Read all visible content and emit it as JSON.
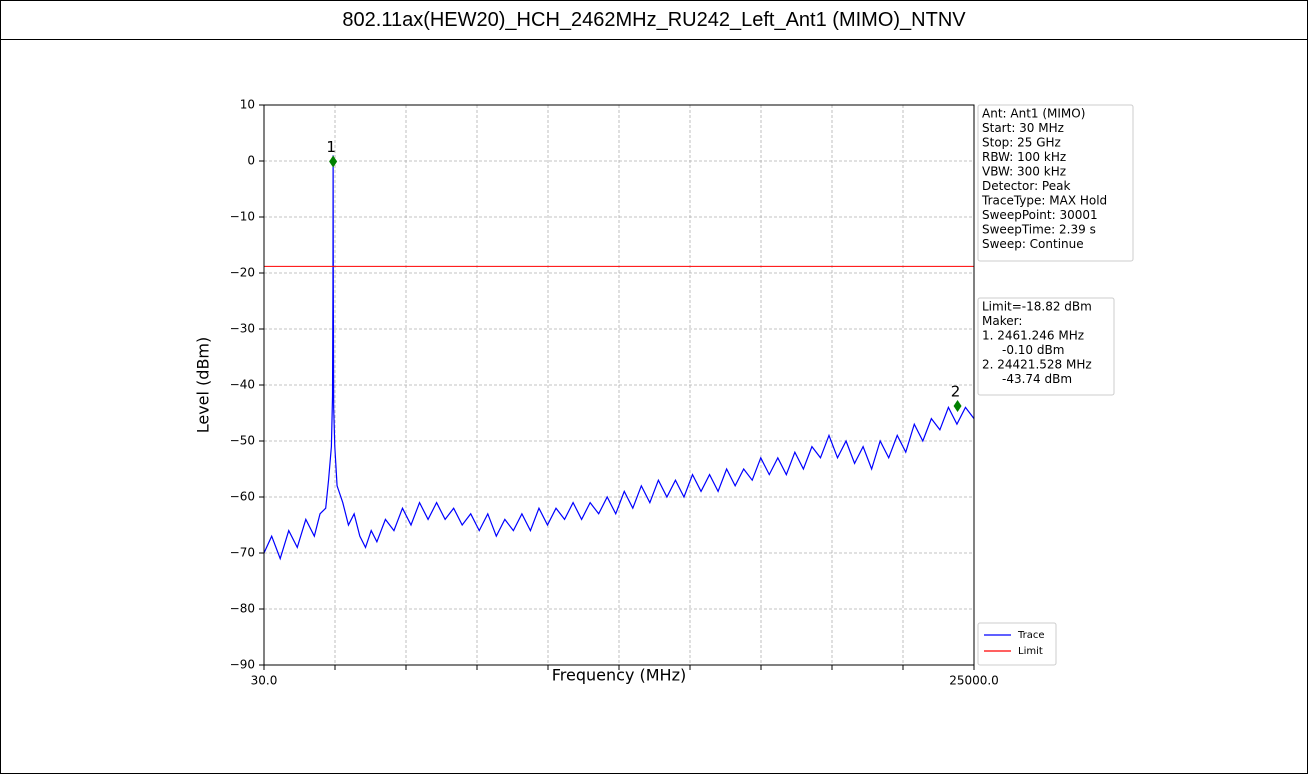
{
  "chart_data": {
    "type": "line",
    "title": "802.11ax(HEW20)_HCH_2462MHz_RU242_Left_Ant1 (MIMO)_NTNV",
    "x_label": "Frequency (MHz)",
    "y_label": "Level (dBm)",
    "xlim": [
      30,
      25000
    ],
    "ylim": [
      -90,
      10
    ],
    "xticks": [
      {
        "value": 30,
        "label": "30.0"
      },
      {
        "value": 25000,
        "label": "25000.0"
      }
    ],
    "xticks_minor": [
      2527,
      5024,
      7521,
      10018,
      12515,
      15012,
      17509,
      20006,
      22503
    ],
    "yticks": [
      {
        "value": -90,
        "label": "−90"
      },
      {
        "value": -80,
        "label": "−80"
      },
      {
        "value": -70,
        "label": "−70"
      },
      {
        "value": -60,
        "label": "−60"
      },
      {
        "value": -50,
        "label": "−50"
      },
      {
        "value": -40,
        "label": "−40"
      },
      {
        "value": -30,
        "label": "−30"
      },
      {
        "value": -20,
        "label": "−20"
      },
      {
        "value": -10,
        "label": "−10"
      },
      0,
      10
    ],
    "grid": true,
    "series": [
      {
        "name": "Trace",
        "color": "#0000ff",
        "x": [
          30,
          300,
          600,
          900,
          1200,
          1500,
          1800,
          2000,
          2200,
          2300,
          2400,
          2440,
          2455,
          2461,
          2467,
          2480,
          2520,
          2600,
          2800,
          3000,
          3200,
          3400,
          3600,
          3800,
          4000,
          4300,
          4600,
          4900,
          5200,
          5500,
          5800,
          6100,
          6400,
          6700,
          7000,
          7300,
          7600,
          7900,
          8200,
          8500,
          8800,
          9100,
          9400,
          9700,
          10000,
          10300,
          10600,
          10900,
          11200,
          11500,
          11800,
          12100,
          12400,
          12700,
          13000,
          13300,
          13600,
          13900,
          14200,
          14500,
          14800,
          15100,
          15400,
          15700,
          16000,
          16300,
          16600,
          16900,
          17200,
          17500,
          17800,
          18100,
          18400,
          18700,
          19000,
          19300,
          19600,
          19900,
          20200,
          20500,
          20800,
          21100,
          21400,
          21700,
          22000,
          22300,
          22600,
          22900,
          23200,
          23500,
          23800,
          24100,
          24400,
          24700,
          25000
        ],
        "values": [
          -70,
          -67,
          -71,
          -66,
          -69,
          -64,
          -67,
          -63,
          -62,
          -57,
          -51,
          -42,
          -22,
          1,
          -22,
          -44,
          -51,
          -58,
          -61,
          -65,
          -63,
          -67,
          -69,
          -66,
          -68,
          -64,
          -66,
          -62,
          -65,
          -61,
          -64,
          -61,
          -64,
          -62,
          -65,
          -63,
          -66,
          -63,
          -67,
          -64,
          -66,
          -63,
          -66,
          -62,
          -65,
          -62,
          -64,
          -61,
          -64,
          -61,
          -63,
          -60,
          -63,
          -59,
          -62,
          -58,
          -61,
          -57,
          -60,
          -57,
          -60,
          -56,
          -59,
          -56,
          -59,
          -55,
          -58,
          -55,
          -57,
          -53,
          -56,
          -53,
          -56,
          -52,
          -55,
          -51,
          -53,
          -49,
          -53,
          -50,
          -54,
          -51,
          -55,
          -50,
          -53,
          -49,
          -52,
          -47,
          -50,
          -46,
          -48,
          -44,
          -47,
          -44,
          -46
        ]
      }
    ],
    "limit": {
      "name": "Limit",
      "color": "#ff0000",
      "value": -18.82,
      "value_label": "Limit=-18.82 dBm"
    },
    "marker_heading": "Maker:",
    "markers": [
      {
        "label": "1",
        "x": 2461.246,
        "y": -0.1,
        "x_label": "1. 2461.246 MHz",
        "y_label": "-0.10 dBm"
      },
      {
        "label": "2",
        "x": 24421.528,
        "y": -43.74,
        "x_label": "2. 24421.528 MHz",
        "y_label": "-43.74 dBm"
      }
    ],
    "marker_color": "#008000",
    "settings": [
      "Ant: Ant1 (MIMO)",
      "Start: 30 MHz",
      "Stop: 25 GHz",
      "RBW: 100 kHz",
      "VBW: 300 kHz",
      "Detector: Peak",
      "TraceType: MAX Hold",
      "SweepPoint: 30001",
      "SweepTime: 2.39 s",
      "Sweep: Continue"
    ]
  }
}
